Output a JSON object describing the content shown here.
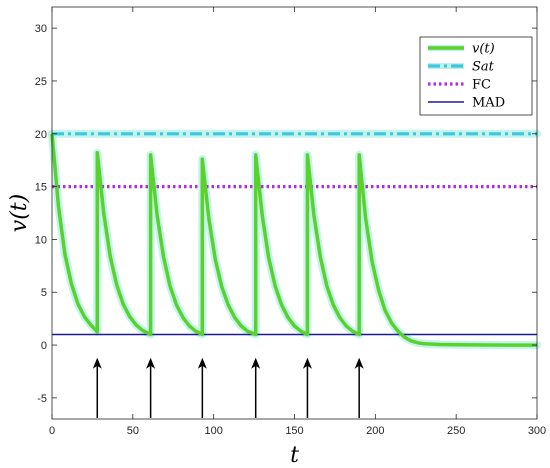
{
  "chart_data": {
    "type": "line",
    "xlabel": "t",
    "ylabel": "v(t)",
    "xlim": [
      0,
      300
    ],
    "ylim": [
      -7,
      32
    ],
    "xticks": [
      0,
      50,
      100,
      150,
      200,
      250,
      300
    ],
    "yticks": [
      -5,
      0,
      5,
      10,
      15,
      20,
      25,
      30
    ],
    "grid": false,
    "legend_position": "top-right",
    "dose_times": [
      28,
      61,
      93,
      126,
      158,
      190
    ],
    "arrows": {
      "from": -7,
      "to": -1.2,
      "color": "#000000"
    },
    "series": [
      {
        "name": "v(t)",
        "style": "solid-thick",
        "color": "#5ad22b",
        "halo": "#b8f2ea",
        "x": [
          0,
          4,
          8,
          12,
          16,
          20,
          24,
          28,
          28,
          32,
          36,
          40,
          44,
          48,
          52,
          56,
          61,
          61,
          65,
          69,
          73,
          77,
          81,
          85,
          89,
          93,
          93,
          97,
          101,
          105,
          109,
          113,
          117,
          121,
          126,
          126,
          130,
          134,
          138,
          142,
          146,
          150,
          154,
          158,
          158,
          162,
          166,
          170,
          174,
          178,
          182,
          186,
          190,
          190,
          194,
          198,
          202,
          206,
          210,
          214,
          218,
          222,
          226,
          230,
          240,
          250,
          260,
          280,
          300
        ],
        "y": [
          20.0,
          13.1,
          8.6,
          5.8,
          3.9,
          2.7,
          1.9,
          1.25,
          18.2,
          12.5,
          8.4,
          5.7,
          3.9,
          2.7,
          1.9,
          1.4,
          1.0,
          18.0,
          12.3,
          8.3,
          5.6,
          3.8,
          2.6,
          1.8,
          1.3,
          1.0,
          17.6,
          12.0,
          8.1,
          5.5,
          3.8,
          2.6,
          1.8,
          1.3,
          1.0,
          18.0,
          12.3,
          8.3,
          5.6,
          3.8,
          2.6,
          1.8,
          1.3,
          1.0,
          18.0,
          12.3,
          8.3,
          5.6,
          3.8,
          2.6,
          1.8,
          1.3,
          1.0,
          18.0,
          12.0,
          7.9,
          5.2,
          3.3,
          2.1,
          1.3,
          0.75,
          0.4,
          0.22,
          0.12,
          0.05,
          0.02,
          0.01,
          0.0,
          0.0
        ]
      },
      {
        "name": "Sat",
        "style": "dash-dot",
        "color": "#3fc7dd",
        "halo": "#b8f2ea",
        "x": [
          0,
          300
        ],
        "y": [
          20,
          20
        ]
      },
      {
        "name": "FC",
        "style": "dotted",
        "color": "#b22ce3",
        "x": [
          0,
          300
        ],
        "y": [
          15,
          15
        ]
      },
      {
        "name": "MAD",
        "style": "solid-thin",
        "color": "#1f1a9c",
        "x": [
          0,
          300
        ],
        "y": [
          1,
          1
        ]
      }
    ]
  }
}
